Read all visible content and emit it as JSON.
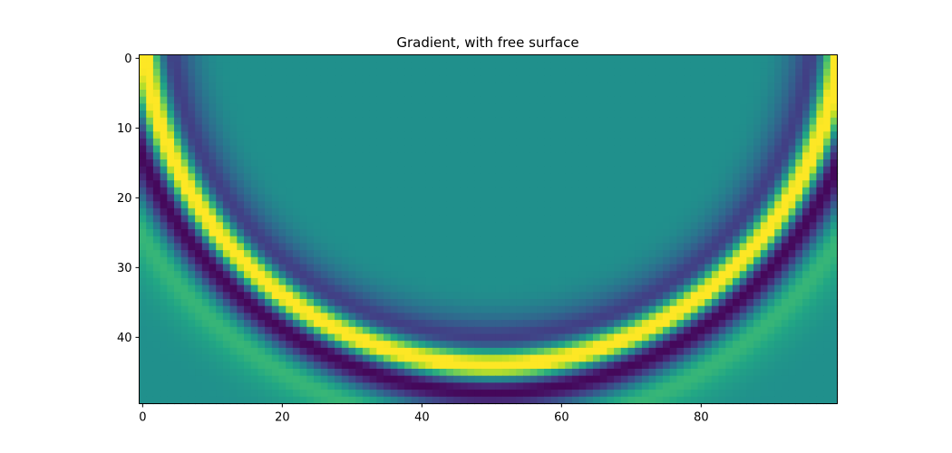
{
  "chart_data": {
    "type": "heatmap",
    "title": "Gradient, with free surface",
    "xlabel": "",
    "ylabel": "",
    "grid": {
      "n_cols": 100,
      "n_rows": 50,
      "extent_x": [
        -0.5,
        99.5
      ],
      "extent_y": [
        49.5,
        -0.5
      ]
    },
    "x_ticks": [
      0,
      20,
      40,
      60,
      80
    ],
    "y_ticks": [
      0,
      10,
      20,
      30,
      40
    ],
    "colormap": "viridis",
    "colorbar": false,
    "field": {
      "source_x": 50,
      "source_y": -6,
      "bands": [
        {
          "radius": 44.0,
          "amplitude": -0.3,
          "width": 2.0
        },
        {
          "radius": 46.8,
          "amplitude": -0.75,
          "width": 1.6
        },
        {
          "radius": 49.3,
          "amplitude": 0.8,
          "width": 1.6
        },
        {
          "radius": 50.6,
          "amplitude": 1.0,
          "width": 1.4
        },
        {
          "radius": 53.0,
          "amplitude": -1.0,
          "width": 1.6
        },
        {
          "radius": 55.3,
          "amplitude": -0.6,
          "width": 1.6
        },
        {
          "radius": 58.2,
          "amplitude": 0.38,
          "width": 2.0
        },
        {
          "radius": 61.2,
          "amplitude": 0.12,
          "width": 2.4
        }
      ],
      "background_value": 0.0,
      "value_range": [
        -1,
        1
      ]
    },
    "colors": {
      "low": "#440154",
      "mid": "#21918c",
      "high": "#fde725",
      "background": "#29788e"
    }
  }
}
